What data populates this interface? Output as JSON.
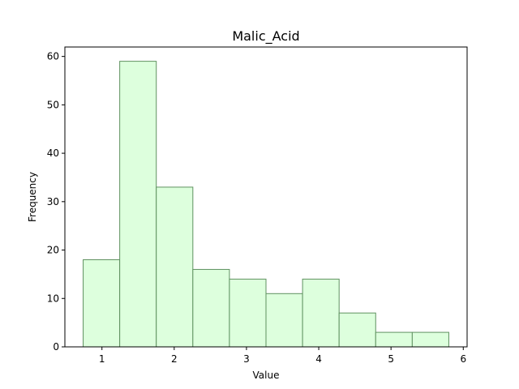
{
  "chart_data": {
    "type": "bar",
    "title": "Malic_Acid",
    "xlabel": "Value",
    "ylabel": "Frequency",
    "bin_edges": [
      0.74,
      1.246,
      1.752,
      2.258,
      2.764,
      3.27,
      3.776,
      4.282,
      4.788,
      5.294,
      5.8
    ],
    "values": [
      18,
      59,
      33,
      16,
      14,
      11,
      14,
      7,
      3,
      3
    ],
    "xlim": [
      0.487,
      6.053
    ],
    "ylim": [
      0,
      61.95
    ],
    "xticks": [
      1,
      2,
      3,
      4,
      5,
      6
    ],
    "yticks": [
      0,
      10,
      20,
      30,
      40,
      50,
      60
    ],
    "grid": false,
    "bar_fill": "#ddffdd",
    "bar_edge": "#5f9160"
  }
}
